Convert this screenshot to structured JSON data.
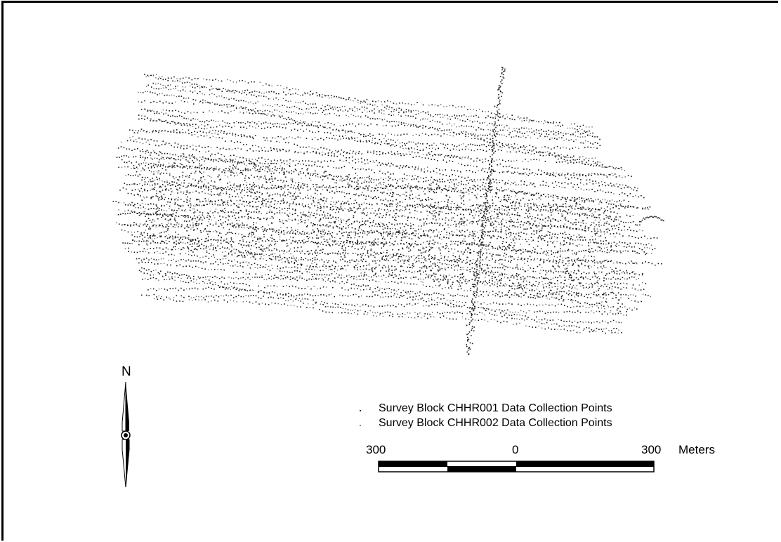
{
  "map": {
    "north_label": "N",
    "legend": [
      {
        "label": "Survey Block CHHR001 Data Collection Points",
        "symbol": "dark-point"
      },
      {
        "label": "Survey Block CHHR002 Data Collection Points",
        "symbol": "light-point"
      }
    ],
    "scale": {
      "left_label": "300",
      "center_label": "0",
      "right_label": "300",
      "units": "Meters"
    },
    "point_color": "#1a1a1a"
  }
}
